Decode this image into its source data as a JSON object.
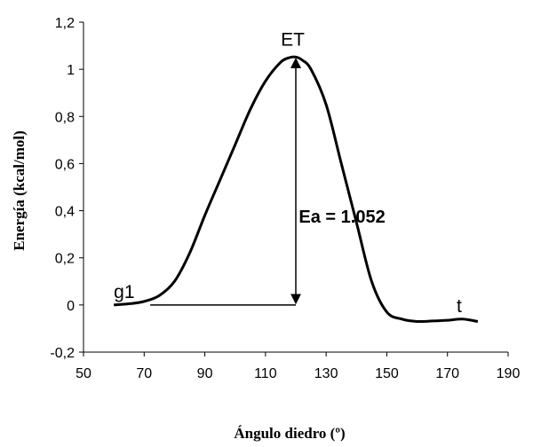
{
  "chart_data": {
    "type": "line",
    "title": "",
    "xlabel": "Ángulo diedro (º)",
    "ylabel": "Energía (kcal/mol)",
    "xlim": [
      50,
      190
    ],
    "ylim": [
      -0.2,
      1.2
    ],
    "xticks": [
      50,
      70,
      90,
      110,
      130,
      150,
      170,
      190
    ],
    "xtick_labels": [
      "50",
      "70",
      "90",
      "110",
      "130",
      "150",
      "170",
      "190"
    ],
    "yticks": [
      -0.2,
      0,
      0.2,
      0.4,
      0.6,
      0.8,
      1,
      1.2
    ],
    "ytick_labels": [
      "-0,2",
      "0",
      "0,2",
      "0,4",
      "0,6",
      "0,8",
      "1",
      "1,2"
    ],
    "grid": false,
    "series": [
      {
        "x": [
          60,
          65,
          70,
          75,
          80,
          85,
          90,
          95,
          100,
          105,
          110,
          115,
          118,
          120,
          122,
          125,
          130,
          135,
          140,
          145,
          150,
          155,
          160,
          165,
          170,
          175,
          180
        ],
        "values": [
          0.0,
          0.005,
          0.015,
          0.04,
          0.1,
          0.22,
          0.38,
          0.53,
          0.68,
          0.83,
          0.95,
          1.03,
          1.05,
          1.052,
          1.04,
          1.0,
          0.85,
          0.6,
          0.35,
          0.1,
          -0.03,
          -0.06,
          -0.07,
          -0.068,
          -0.065,
          -0.06,
          -0.07
        ]
      }
    ],
    "annotations": [
      {
        "text": "ET",
        "x": 119,
        "y": 1.1
      },
      {
        "text": "g1",
        "x": 60,
        "y": 0.03
      },
      {
        "text": "t",
        "x": 173,
        "y": -0.03
      },
      {
        "text": "Ea  =  1.052",
        "x": 121,
        "y": 0.35
      }
    ],
    "baseline": {
      "x_start": 72,
      "x_end": 120,
      "y": 0.0
    },
    "arrow": {
      "x": 120,
      "y_from": 0.0,
      "y_to": 1.052
    }
  }
}
